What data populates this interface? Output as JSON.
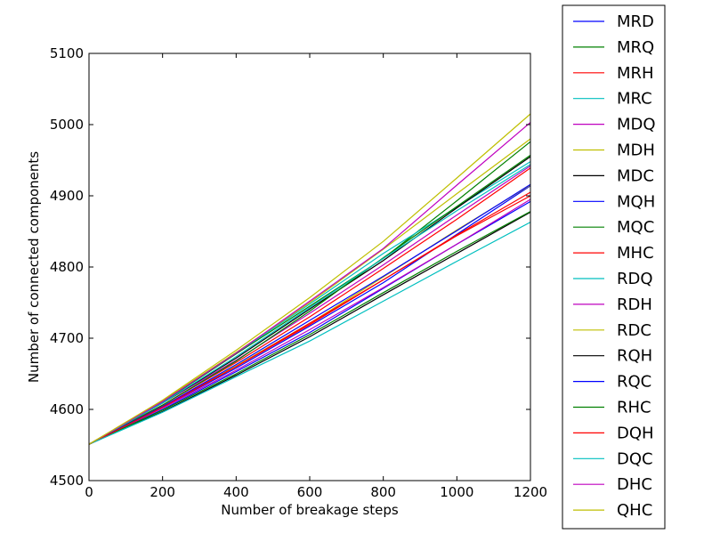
{
  "chart_data": {
    "type": "line",
    "title": "",
    "xlabel": "Number of breakage steps",
    "ylabel": "Number of connected components",
    "xlim": [
      0,
      1200
    ],
    "ylim": [
      4500,
      5100
    ],
    "xticks": [
      0,
      200,
      400,
      600,
      800,
      1000,
      1200
    ],
    "yticks": [
      4500,
      4600,
      4700,
      4800,
      4900,
      5000,
      5100
    ],
    "grid": false,
    "legend": "outside-right",
    "x": [
      0,
      200,
      400,
      600,
      800,
      1000,
      1200
    ],
    "series": [
      {
        "name": "MRD",
        "color": "#0000ff",
        "values": [
          4551,
          4603,
          4658,
          4717,
          4778,
          4846,
          4914
        ]
      },
      {
        "name": "MRQ",
        "color": "#008000",
        "values": [
          4551,
          4610,
          4678,
          4745,
          4812,
          4893,
          4976
        ]
      },
      {
        "name": "MRH",
        "color": "#ff0000",
        "values": [
          4551,
          4606,
          4666,
          4730,
          4798,
          4867,
          4939
        ]
      },
      {
        "name": "MRC",
        "color": "#00bfbf",
        "values": [
          4551,
          4611,
          4679,
          4748,
          4819,
          4884,
          4948
        ]
      },
      {
        "name": "MDQ",
        "color": "#bf00bf",
        "values": [
          4551,
          4609,
          4669,
          4735,
          4803,
          4873,
          4942
        ]
      },
      {
        "name": "MDH",
        "color": "#bfbf00",
        "values": [
          4551,
          4604,
          4661,
          4721,
          4786,
          4852,
          4915
        ]
      },
      {
        "name": "MDC",
        "color": "#000000",
        "values": [
          4551,
          4609,
          4672,
          4741,
          4809,
          4883,
          4955
        ]
      },
      {
        "name": "MQH",
        "color": "#0000ff",
        "values": [
          4551,
          4600,
          4653,
          4708,
          4770,
          4832,
          4892
        ]
      },
      {
        "name": "MQC",
        "color": "#008000",
        "values": [
          4551,
          4606,
          4668,
          4738,
          4813,
          4885,
          4957
        ]
      },
      {
        "name": "MHC",
        "color": "#ff0000",
        "values": [
          4551,
          4604,
          4660,
          4719,
          4782,
          4845,
          4905
        ]
      },
      {
        "name": "RDQ",
        "color": "#00bfbf",
        "values": [
          4551,
          4609,
          4674,
          4743,
          4812,
          4879,
          4944
        ]
      },
      {
        "name": "RDH",
        "color": "#bf00bf",
        "values": [
          4551,
          4602,
          4655,
          4712,
          4771,
          4832,
          4895
        ]
      },
      {
        "name": "RDC",
        "color": "#bfbf00",
        "values": [
          4551,
          4612,
          4680,
          4750,
          4825,
          4903,
          4980
        ]
      },
      {
        "name": "RQH",
        "color": "#000000",
        "values": [
          4551,
          4597,
          4648,
          4702,
          4761,
          4819,
          4877
        ]
      },
      {
        "name": "RQC",
        "color": "#0000ff",
        "values": [
          4551,
          4604,
          4663,
          4725,
          4787,
          4851,
          4916
        ]
      },
      {
        "name": "RHC",
        "color": "#008000",
        "values": [
          4551,
          4599,
          4650,
          4705,
          4764,
          4822,
          4878
        ]
      },
      {
        "name": "DQH",
        "color": "#ff0000",
        "values": [
          4551,
          4603,
          4660,
          4721,
          4782,
          4844,
          4900
        ]
      },
      {
        "name": "DQC",
        "color": "#00bfbf",
        "values": [
          4551,
          4596,
          4646,
          4696,
          4752,
          4808,
          4863
        ]
      },
      {
        "name": "DHC",
        "color": "#bf00bf",
        "values": [
          4551,
          4611,
          4679,
          4752,
          4826,
          4915,
          5003
        ]
      },
      {
        "name": "QHC",
        "color": "#bfbf00",
        "values": [
          4551,
          4613,
          4683,
          4757,
          4836,
          4925,
          5015
        ]
      }
    ]
  }
}
